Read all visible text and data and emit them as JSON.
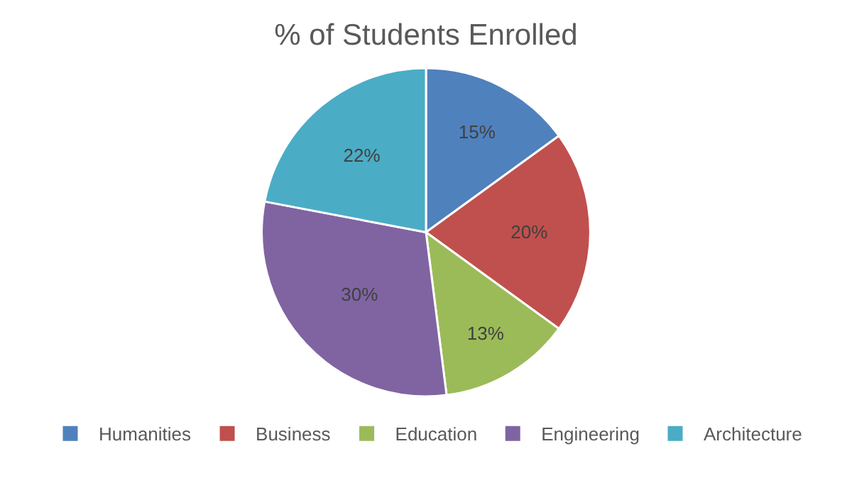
{
  "chart_data": {
    "type": "pie",
    "title": "% of Students Enrolled",
    "categories": [
      "Humanities",
      "Business",
      "Education",
      "Engineering",
      "Architecture"
    ],
    "values": [
      15,
      20,
      13,
      30,
      22
    ],
    "colors": [
      "#4f81bd",
      "#c0504d",
      "#9bbb59",
      "#8064a2",
      "#4bacc6"
    ],
    "value_labels": [
      "15%",
      "20%",
      "13%",
      "30%",
      "22%"
    ],
    "legend": "bottom"
  }
}
